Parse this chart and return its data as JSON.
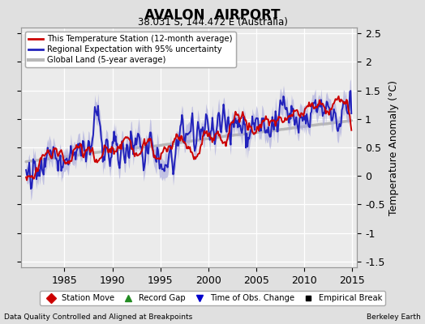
{
  "title": "AVALON  AIRPORT",
  "subtitle": "38.031 S, 144.472 E (Australia)",
  "ylabel": "Temperature Anomaly (°C)",
  "xlabel_left": "Data Quality Controlled and Aligned at Breakpoints",
  "xlabel_right": "Berkeley Earth",
  "xlim": [
    1980.5,
    2015.5
  ],
  "ylim": [
    -1.6,
    2.6
  ],
  "yticks": [
    -1.5,
    -1.0,
    -0.5,
    0.0,
    0.5,
    1.0,
    1.5,
    2.0,
    2.5
  ],
  "yticklabels": [
    "-1.5",
    "-1",
    "-0.5",
    "0",
    "0.5",
    "1",
    "1.5",
    "2",
    "2.5"
  ],
  "xticks": [
    1985,
    1990,
    1995,
    2000,
    2005,
    2010,
    2015
  ],
  "bg_color": "#e0e0e0",
  "plot_bg_color": "#ebebeb",
  "grid_color": "#ffffff",
  "station_color": "#cc0000",
  "regional_color": "#2222bb",
  "regional_fill_color": "#aaaadd",
  "global_color": "#b8b8b8",
  "legend_items": [
    {
      "label": "This Temperature Station (12-month average)",
      "color": "#cc0000",
      "lw": 2
    },
    {
      "label": "Regional Expectation with 95% uncertainty",
      "color": "#2222bb",
      "lw": 2
    },
    {
      "label": "Global Land (5-year average)",
      "color": "#b8b8b8",
      "lw": 3
    }
  ],
  "marker_items": [
    {
      "label": "Station Move",
      "color": "#cc0000",
      "marker": "D"
    },
    {
      "label": "Record Gap",
      "color": "#228B22",
      "marker": "^"
    },
    {
      "label": "Time of Obs. Change",
      "color": "#0000cc",
      "marker": "v"
    },
    {
      "label": "Empirical Break",
      "color": "#000000",
      "marker": "s"
    }
  ]
}
